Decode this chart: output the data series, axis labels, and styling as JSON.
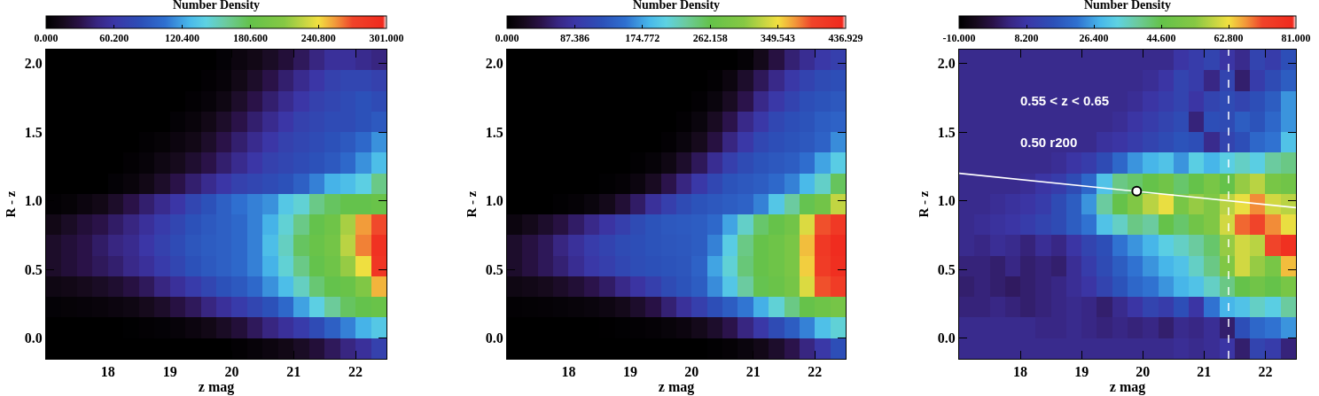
{
  "chart_data": [
    {
      "type": "heatmap",
      "clabel": "Number Density",
      "xlabel": "z mag",
      "ylabel": "R - z",
      "x": [
        17.125,
        17.375,
        17.625,
        17.875,
        18.125,
        18.375,
        18.625,
        18.875,
        19.125,
        19.375,
        19.625,
        19.875,
        20.125,
        20.375,
        20.625,
        20.875,
        21.125,
        21.375,
        21.625,
        21.875,
        22.125,
        22.375
      ],
      "y": [
        2.025,
        1.875,
        1.725,
        1.575,
        1.425,
        1.275,
        1.125,
        0.975,
        0.825,
        0.675,
        0.525,
        0.375,
        0.225,
        0.075,
        -0.075
      ],
      "xlim": [
        17.0,
        22.5
      ],
      "xticks": [
        18,
        19,
        20,
        21,
        22
      ],
      "ylim": [
        -0.15,
        2.1
      ],
      "yticks": [
        {
          "value": 0,
          "label": "0.0"
        },
        {
          "value": 0.5,
          "label": "0.5"
        },
        {
          "value": 1,
          "label": "1.0"
        },
        {
          "value": 1.5,
          "label": "1.5"
        },
        {
          "value": 2,
          "label": "2.0"
        }
      ],
      "clim": [
        0,
        301
      ],
      "cticks": [
        {
          "value": 0,
          "label": "0.000"
        },
        {
          "value": 60.2,
          "label": "60.200"
        },
        {
          "value": 120.4,
          "label": "120.400"
        },
        {
          "value": 180.6,
          "label": "180.600"
        },
        {
          "value": 240.8,
          "label": "240.800"
        },
        {
          "value": 301,
          "label": "301.000"
        }
      ],
      "cells": [
        [
          0,
          0,
          0,
          0,
          0,
          0,
          0,
          0,
          0,
          0,
          0,
          3,
          8,
          12,
          18,
          25,
          35,
          45,
          55,
          55,
          50,
          45
        ],
        [
          0,
          0,
          0,
          0,
          0,
          0,
          0,
          0,
          0,
          0,
          2,
          5,
          12,
          20,
          30,
          40,
          50,
          60,
          70,
          75,
          75,
          70
        ],
        [
          0,
          0,
          0,
          0,
          0,
          0,
          0,
          0,
          0,
          2,
          5,
          10,
          20,
          30,
          40,
          50,
          60,
          70,
          75,
          80,
          85,
          80
        ],
        [
          0,
          0,
          0,
          0,
          0,
          0,
          0,
          0,
          3,
          6,
          12,
          20,
          30,
          40,
          50,
          60,
          70,
          75,
          80,
          80,
          85,
          90
        ],
        [
          0,
          0,
          0,
          0,
          0,
          0,
          2,
          4,
          8,
          12,
          20,
          30,
          40,
          50,
          60,
          70,
          75,
          80,
          85,
          90,
          100,
          115
        ],
        [
          0,
          0,
          0,
          0,
          0,
          2,
          5,
          10,
          15,
          22,
          30,
          40,
          50,
          60,
          70,
          75,
          80,
          85,
          90,
          100,
          115,
          130
        ],
        [
          0,
          0,
          0,
          0,
          3,
          6,
          12,
          20,
          30,
          40,
          50,
          60,
          70,
          75,
          80,
          85,
          95,
          110,
          125,
          130,
          140,
          165
        ],
        [
          2,
          4,
          8,
          12,
          20,
          30,
          40,
          50,
          60,
          75,
          85,
          95,
          105,
          110,
          115,
          135,
          145,
          165,
          175,
          180,
          180,
          185
        ],
        [
          12,
          18,
          25,
          30,
          38,
          45,
          55,
          65,
          75,
          85,
          90,
          95,
          100,
          110,
          125,
          145,
          165,
          180,
          190,
          220,
          255,
          270
        ],
        [
          20,
          25,
          30,
          38,
          45,
          50,
          60,
          70,
          80,
          88,
          92,
          95,
          100,
          110,
          130,
          150,
          175,
          185,
          195,
          225,
          260,
          290
        ],
        [
          20,
          25,
          30,
          35,
          40,
          48,
          55,
          65,
          75,
          85,
          90,
          95,
          100,
          110,
          125,
          145,
          165,
          180,
          190,
          215,
          240,
          285
        ],
        [
          10,
          12,
          15,
          18,
          22,
          28,
          35,
          45,
          55,
          65,
          75,
          85,
          90,
          100,
          115,
          130,
          150,
          170,
          180,
          185,
          205,
          250
        ],
        [
          3,
          4,
          5,
          6,
          8,
          10,
          15,
          20,
          28,
          35,
          45,
          55,
          65,
          75,
          85,
          100,
          120,
          140,
          160,
          175,
          180,
          185
        ],
        [
          0,
          0,
          0,
          0,
          0,
          1,
          2,
          3,
          5,
          8,
          12,
          18,
          25,
          35,
          45,
          55,
          65,
          80,
          95,
          110,
          125,
          135
        ],
        [
          0,
          0,
          0,
          0,
          0,
          0,
          0,
          0,
          0,
          0,
          0,
          0,
          2,
          5,
          8,
          12,
          18,
          25,
          35,
          45,
          55,
          70
        ]
      ]
    },
    {
      "type": "heatmap",
      "clabel": "Number Density",
      "xlabel": "z mag",
      "ylabel": "R - z",
      "x": [
        17.125,
        17.375,
        17.625,
        17.875,
        18.125,
        18.375,
        18.625,
        18.875,
        19.125,
        19.375,
        19.625,
        19.875,
        20.125,
        20.375,
        20.625,
        20.875,
        21.125,
        21.375,
        21.625,
        21.875,
        22.125,
        22.375
      ],
      "y": [
        2.025,
        1.875,
        1.725,
        1.575,
        1.425,
        1.275,
        1.125,
        0.975,
        0.825,
        0.675,
        0.525,
        0.375,
        0.225,
        0.075,
        -0.075
      ],
      "xlim": [
        17.0,
        22.5
      ],
      "xticks": [
        18,
        19,
        20,
        21,
        22
      ],
      "ylim": [
        -0.15,
        2.1
      ],
      "yticks": [
        {
          "value": 0,
          "label": "0.0"
        },
        {
          "value": 0.5,
          "label": "0.5"
        },
        {
          "value": 1,
          "label": "1.0"
        },
        {
          "value": 1.5,
          "label": "1.5"
        },
        {
          "value": 2,
          "label": "2.0"
        }
      ],
      "clim": [
        0,
        436.929
      ],
      "cticks": [
        {
          "value": 0,
          "label": "0.000"
        },
        87.386,
        174.772,
        262.158,
        349.543,
        436.929
      ],
      "cells": [
        [
          0,
          0,
          0,
          0,
          0,
          0,
          0,
          0,
          0,
          0,
          0,
          0,
          0,
          0,
          0,
          5,
          20,
          40,
          60,
          75,
          90,
          100
        ],
        [
          0,
          0,
          0,
          0,
          0,
          0,
          0,
          0,
          0,
          0,
          0,
          0,
          0,
          3,
          12,
          30,
          50,
          70,
          90,
          105,
          115,
          120
        ],
        [
          0,
          0,
          0,
          0,
          0,
          0,
          0,
          0,
          0,
          0,
          0,
          0,
          3,
          10,
          25,
          45,
          70,
          90,
          105,
          120,
          125,
          130
        ],
        [
          0,
          0,
          0,
          0,
          0,
          0,
          0,
          0,
          0,
          0,
          0,
          3,
          10,
          25,
          45,
          70,
          90,
          110,
          120,
          125,
          135,
          140
        ],
        [
          0,
          0,
          0,
          0,
          0,
          0,
          0,
          0,
          0,
          0,
          3,
          10,
          22,
          40,
          65,
          90,
          110,
          120,
          125,
          130,
          140,
          165
        ],
        [
          0,
          0,
          0,
          0,
          0,
          0,
          0,
          0,
          2,
          6,
          15,
          30,
          50,
          75,
          100,
          115,
          125,
          130,
          135,
          150,
          175,
          200
        ],
        [
          0,
          0,
          0,
          0,
          0,
          0,
          2,
          5,
          12,
          25,
          45,
          65,
          90,
          110,
          125,
          130,
          135,
          145,
          160,
          185,
          215,
          255
        ],
        [
          0,
          0,
          0,
          2,
          5,
          10,
          20,
          35,
          55,
          80,
          100,
          115,
          125,
          130,
          135,
          140,
          160,
          195,
          230,
          260,
          280,
          330
        ],
        [
          12,
          20,
          30,
          40,
          55,
          70,
          85,
          100,
          115,
          125,
          130,
          132,
          135,
          145,
          175,
          215,
          250,
          265,
          280,
          340,
          390,
          410
        ],
        [
          30,
          40,
          50,
          65,
          80,
          95,
          105,
          115,
          120,
          125,
          128,
          130,
          135,
          160,
          200,
          240,
          265,
          275,
          290,
          360,
          410,
          430
        ],
        [
          30,
          40,
          50,
          60,
          75,
          90,
          100,
          110,
          118,
          122,
          125,
          128,
          140,
          175,
          210,
          245,
          265,
          275,
          290,
          355,
          405,
          425
        ],
        [
          15,
          18,
          22,
          28,
          35,
          45,
          55,
          70,
          85,
          100,
          115,
          125,
          135,
          165,
          195,
          230,
          260,
          270,
          285,
          340,
          390,
          405
        ],
        [
          3,
          4,
          5,
          6,
          8,
          10,
          14,
          20,
          30,
          42,
          60,
          80,
          100,
          120,
          135,
          155,
          180,
          210,
          240,
          265,
          275,
          285
        ],
        [
          0,
          0,
          0,
          0,
          0,
          0,
          1,
          2,
          3,
          5,
          8,
          12,
          20,
          30,
          45,
          65,
          90,
          115,
          135,
          160,
          190,
          210
        ],
        [
          0,
          0,
          0,
          0,
          0,
          0,
          0,
          0,
          0,
          0,
          0,
          0,
          0,
          2,
          5,
          10,
          18,
          30,
          45,
          65,
          90,
          120
        ]
      ]
    },
    {
      "type": "heatmap",
      "clabel": "Number Density",
      "xlabel": "z mag",
      "ylabel": "R - z",
      "x": [
        17.125,
        17.375,
        17.625,
        17.875,
        18.125,
        18.375,
        18.625,
        18.875,
        19.125,
        19.375,
        19.625,
        19.875,
        20.125,
        20.375,
        20.625,
        20.875,
        21.125,
        21.375,
        21.625,
        21.875,
        22.125,
        22.375
      ],
      "y": [
        2.025,
        1.875,
        1.725,
        1.575,
        1.425,
        1.275,
        1.125,
        0.975,
        0.825,
        0.675,
        0.525,
        0.375,
        0.225,
        0.075,
        -0.075
      ],
      "xlim": [
        17.0,
        22.5
      ],
      "xticks": [
        18,
        19,
        20,
        21,
        22
      ],
      "ylim": [
        -0.15,
        2.1
      ],
      "yticks": [
        {
          "value": 0,
          "label": "0.0"
        },
        {
          "value": 0.5,
          "label": "0.5"
        },
        {
          "value": 1,
          "label": "1.0"
        },
        {
          "value": 1.5,
          "label": "1.5"
        },
        {
          "value": 2,
          "label": "2.0"
        }
      ],
      "clim": [
        -10,
        81
      ],
      "cticks": [
        {
          "value": -10,
          "label": "-10.000"
        },
        {
          "value": 8.2,
          "label": "8.200"
        },
        {
          "value": 26.4,
          "label": "26.400"
        },
        {
          "value": 44.6,
          "label": "44.600"
        },
        {
          "value": 62.8,
          "label": "62.800"
        },
        {
          "value": 81,
          "label": "81.000"
        }
      ],
      "annotations": [
        "0.55 < z < 0.65",
        "0.50 r200"
      ],
      "ref_lines": [
        {
          "axis": "x",
          "value": 21.4,
          "color": "#ffffff",
          "line_style": "dashed"
        }
      ],
      "series": [
        {
          "type": "line",
          "color": "#ffffff",
          "x": [
            17.0,
            22.5
          ],
          "values": [
            1.2,
            0.95
          ]
        },
        {
          "type": "scatter",
          "marker": "circle",
          "color": "#ffffff",
          "x": [
            19.9
          ],
          "values": [
            1.07
          ]
        }
      ],
      "cells": [
        [
          5,
          5,
          5,
          5,
          5,
          5,
          5,
          5,
          5,
          5,
          5,
          5,
          5,
          5,
          8,
          10,
          12,
          8,
          5,
          12,
          10,
          15
        ],
        [
          5,
          5,
          5,
          5,
          5,
          5,
          5,
          5,
          5,
          5,
          5,
          5,
          6,
          8,
          12,
          10,
          4,
          12,
          2,
          10,
          14,
          18
        ],
        [
          5,
          5,
          5,
          5,
          5,
          5,
          5,
          5,
          5,
          5,
          5,
          6,
          8,
          10,
          12,
          8,
          12,
          14,
          12,
          15,
          18,
          25
        ],
        [
          5,
          5,
          5,
          5,
          5,
          5,
          5,
          5,
          5,
          5,
          6,
          8,
          10,
          12,
          14,
          3,
          15,
          14,
          18,
          16,
          20,
          25
        ],
        [
          5,
          5,
          5,
          5,
          5,
          5,
          5,
          5,
          5,
          7,
          8,
          10,
          12,
          14,
          16,
          15,
          5,
          12,
          15,
          20,
          22,
          30
        ],
        [
          5,
          5,
          5,
          5,
          5,
          5,
          6,
          8,
          10,
          14,
          20,
          25,
          28,
          30,
          25,
          32,
          28,
          32,
          35,
          32,
          38,
          40
        ],
        [
          5,
          5,
          5,
          5,
          6,
          8,
          10,
          14,
          20,
          30,
          40,
          42,
          45,
          48,
          42,
          45,
          50,
          45,
          55,
          58,
          50,
          48
        ],
        [
          5,
          5,
          6,
          7,
          8,
          10,
          14,
          18,
          25,
          38,
          45,
          52,
          58,
          62,
          50,
          55,
          52,
          58,
          62,
          68,
          60,
          58
        ],
        [
          5,
          6,
          7,
          8,
          10,
          12,
          14,
          18,
          22,
          30,
          35,
          40,
          38,
          45,
          42,
          48,
          52,
          60,
          70,
          72,
          68,
          62
        ],
        [
          5,
          4,
          6,
          5,
          3,
          6,
          4,
          8,
          12,
          15,
          22,
          25,
          28,
          32,
          35,
          38,
          42,
          55,
          60,
          58,
          72,
          78
        ],
        [
          3,
          3,
          2,
          4,
          2,
          3,
          2,
          6,
          10,
          14,
          18,
          22,
          25,
          28,
          30,
          35,
          40,
          52,
          60,
          55,
          50,
          65
        ],
        [
          2,
          3,
          2,
          1,
          2,
          3,
          4,
          6,
          8,
          12,
          16,
          20,
          22,
          25,
          28,
          30,
          35,
          40,
          45,
          48,
          45,
          50
        ],
        [
          3,
          3,
          4,
          3,
          2,
          3,
          4,
          5,
          4,
          2,
          5,
          8,
          12,
          10,
          15,
          8,
          22,
          28,
          30,
          35,
          32,
          38
        ],
        [
          5,
          5,
          5,
          5,
          5,
          4,
          4,
          5,
          4,
          3,
          4,
          3,
          4,
          2,
          5,
          4,
          6,
          2,
          15,
          20,
          22,
          25
        ],
        [
          5,
          5,
          5,
          5,
          5,
          5,
          5,
          5,
          5,
          5,
          5,
          5,
          5,
          5,
          6,
          5,
          6,
          8,
          2,
          12,
          10,
          3
        ]
      ]
    }
  ]
}
